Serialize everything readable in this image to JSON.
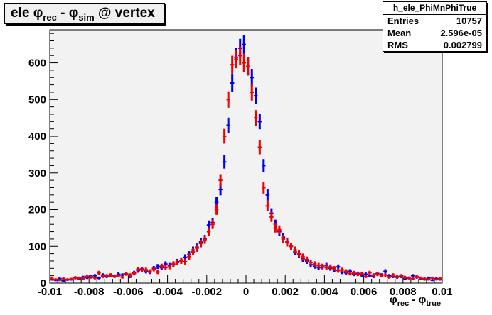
{
  "title": {
    "prefix": "ele ",
    "phi1": "φ",
    "sub1": "rec",
    "minus": " - ",
    "phi2": "φ",
    "sub2": "sim",
    "suffix": " @ vertex"
  },
  "stats": {
    "name": "h_ele_PhiMnPhiTrue",
    "rows": [
      {
        "label": "Entries",
        "value": "10757"
      },
      {
        "label": "Mean",
        "value": "2.596e-05"
      },
      {
        "label": "RMS",
        "value": "0.002799"
      }
    ]
  },
  "xaxis_title": {
    "phi1": "φ",
    "sub1": "rec",
    "minus": " - ",
    "phi2": "φ",
    "sub2": "true"
  },
  "colors": {
    "frame_background": "#f2f2f2",
    "series_blue": "#0000ee",
    "series_red": "#ee0000"
  },
  "chart_data": {
    "type": "scatter",
    "xlim": [
      -0.01,
      0.01
    ],
    "ylim": [
      0,
      690
    ],
    "x_ticks": [
      {
        "value": -0.01,
        "label": "-0.01"
      },
      {
        "value": -0.008,
        "label": "-0.008"
      },
      {
        "value": -0.006,
        "label": "-0.006"
      },
      {
        "value": -0.004,
        "label": "-0.004"
      },
      {
        "value": -0.002,
        "label": "-0.002"
      },
      {
        "value": 0,
        "label": "0"
      },
      {
        "value": 0.002,
        "label": "0.002"
      },
      {
        "value": 0.004,
        "label": "0.004"
      },
      {
        "value": 0.006,
        "label": "0.006"
      },
      {
        "value": 0.008,
        "label": "0.008"
      },
      {
        "value": 0.01,
        "label": "0.01"
      }
    ],
    "y_ticks": [
      {
        "value": 0,
        "label": "0"
      },
      {
        "value": 100,
        "label": "100"
      },
      {
        "value": 200,
        "label": "200"
      },
      {
        "value": 300,
        "label": "300"
      },
      {
        "value": 400,
        "label": "400"
      },
      {
        "value": 500,
        "label": "500"
      },
      {
        "value": 600,
        "label": "600"
      }
    ],
    "grid": false,
    "series": [
      {
        "color": "#0000ee",
        "x": [
          -0.0099,
          -0.0097,
          -0.0095,
          -0.0093,
          -0.0091,
          -0.0089,
          -0.0087,
          -0.0085,
          -0.0083,
          -0.0081,
          -0.0079,
          -0.0077,
          -0.0075,
          -0.0073,
          -0.0071,
          -0.0069,
          -0.0067,
          -0.0065,
          -0.0063,
          -0.0061,
          -0.0059,
          -0.0057,
          -0.0055,
          -0.0053,
          -0.0051,
          -0.0049,
          -0.0047,
          -0.0045,
          -0.0043,
          -0.0041,
          -0.0039,
          -0.0037,
          -0.0035,
          -0.0033,
          -0.0031,
          -0.0029,
          -0.0027,
          -0.0025,
          -0.0023,
          -0.0021,
          -0.0019,
          -0.0017,
          -0.0015,
          -0.0013,
          -0.0011,
          -0.0009,
          -0.0007,
          -0.0005,
          -0.0003,
          -0.0001,
          0.0001,
          0.0003,
          0.0005,
          0.0007,
          0.0009,
          0.0011,
          0.0013,
          0.0015,
          0.0017,
          0.0019,
          0.0021,
          0.0023,
          0.0025,
          0.0027,
          0.0029,
          0.0031,
          0.0033,
          0.0035,
          0.0037,
          0.0039,
          0.0041,
          0.0043,
          0.0045,
          0.0047,
          0.0049,
          0.0051,
          0.0053,
          0.0055,
          0.0057,
          0.0059,
          0.0061,
          0.0063,
          0.0065,
          0.0067,
          0.0069,
          0.0071,
          0.0073,
          0.0075,
          0.0077,
          0.0079,
          0.0081,
          0.0083,
          0.0085,
          0.0087,
          0.0089,
          0.0091,
          0.0093,
          0.0095,
          0.0097,
          0.0099
        ],
        "y": [
          10,
          8,
          12,
          6,
          9,
          10,
          14,
          12,
          16,
          15,
          18,
          20,
          14,
          22,
          18,
          20,
          19,
          24,
          22,
          25,
          18,
          28,
          34,
          38,
          32,
          30,
          40,
          45,
          42,
          52,
          48,
          50,
          58,
          62,
          70,
          78,
          90,
          98,
          112,
          120,
          158,
          165,
          220,
          255,
          330,
          430,
          545,
          615,
          640,
          650,
          590,
          560,
          510,
          440,
          320,
          240,
          190,
          160,
          140,
          125,
          112,
          100,
          85,
          78,
          66,
          60,
          50,
          46,
          42,
          44,
          48,
          40,
          36,
          44,
          30,
          28,
          32,
          24,
          26,
          22,
          24,
          20,
          18,
          26,
          22,
          32,
          20,
          18,
          16,
          18,
          12,
          14,
          20,
          16,
          12,
          10,
          14,
          8,
          12,
          10
        ]
      },
      {
        "color": "#ee0000",
        "x": [
          -0.0099,
          -0.0097,
          -0.0095,
          -0.0093,
          -0.0091,
          -0.0089,
          -0.0087,
          -0.0085,
          -0.0083,
          -0.0081,
          -0.0079,
          -0.0077,
          -0.0075,
          -0.0073,
          -0.0071,
          -0.0069,
          -0.0067,
          -0.0065,
          -0.0063,
          -0.0061,
          -0.0059,
          -0.0057,
          -0.0055,
          -0.0053,
          -0.0051,
          -0.0049,
          -0.0047,
          -0.0045,
          -0.0043,
          -0.0041,
          -0.0039,
          -0.0037,
          -0.0035,
          -0.0033,
          -0.0031,
          -0.0029,
          -0.0027,
          -0.0025,
          -0.0023,
          -0.0021,
          -0.0019,
          -0.0017,
          -0.0015,
          -0.0013,
          -0.0011,
          -0.0009,
          -0.0007,
          -0.0005,
          -0.0003,
          -0.0001,
          0.0001,
          0.0003,
          0.0005,
          0.0007,
          0.0009,
          0.0011,
          0.0013,
          0.0015,
          0.0017,
          0.0019,
          0.0021,
          0.0023,
          0.0025,
          0.0027,
          0.0029,
          0.0031,
          0.0033,
          0.0035,
          0.0037,
          0.0039,
          0.0041,
          0.0043,
          0.0045,
          0.0047,
          0.0049,
          0.0051,
          0.0053,
          0.0055,
          0.0057,
          0.0059,
          0.0061,
          0.0063,
          0.0065,
          0.0067,
          0.0069,
          0.0071,
          0.0073,
          0.0075,
          0.0077,
          0.0079,
          0.0081,
          0.0083,
          0.0085,
          0.0087,
          0.0089,
          0.0091,
          0.0093,
          0.0095,
          0.0097,
          0.0099
        ],
        "y": [
          12,
          10,
          8,
          12,
          10,
          11,
          15,
          14,
          12,
          18,
          16,
          14,
          28,
          18,
          20,
          22,
          18,
          20,
          16,
          25,
          22,
          26,
          38,
          36,
          36,
          32,
          38,
          30,
          46,
          42,
          44,
          52,
          56,
          60,
          58,
          72,
          85,
          95,
          108,
          118,
          140,
          160,
          200,
          280,
          400,
          500,
          595,
          610,
          620,
          600,
          590,
          520,
          450,
          370,
          260,
          210,
          180,
          150,
          145,
          120,
          110,
          100,
          90,
          80,
          72,
          64,
          56,
          52,
          48,
          46,
          42,
          44,
          40,
          34,
          36,
          32,
          26,
          28,
          24,
          26,
          18,
          28,
          22,
          24,
          20,
          22,
          16,
          22,
          18,
          20,
          16,
          14,
          12,
          18,
          14,
          12,
          10,
          14,
          10,
          12
        ]
      }
    ]
  }
}
